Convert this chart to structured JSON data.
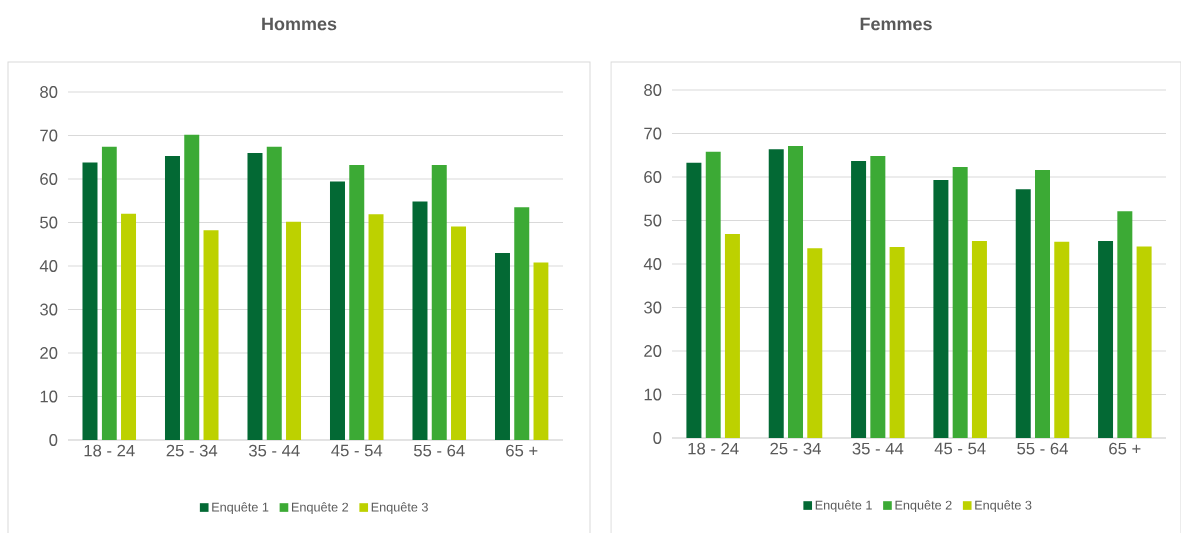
{
  "chart_data": [
    {
      "type": "bar",
      "title": "Hommes",
      "categories": [
        "18 - 24",
        "25 - 34",
        "35 - 44",
        "45 - 54",
        "55 - 64",
        "65 +"
      ],
      "series": [
        {
          "name": "Enquête 1",
          "color": "#036934",
          "values": [
            63.8,
            65.3,
            66.0,
            59.4,
            54.8,
            43.0
          ]
        },
        {
          "name": "Enquête 2",
          "color": "#3caa35",
          "values": [
            67.4,
            70.2,
            67.4,
            63.2,
            63.2,
            53.5
          ]
        },
        {
          "name": "Enquête 3",
          "color": "#bdd100",
          "values": [
            52.0,
            48.2,
            50.2,
            51.9,
            49.1,
            40.8
          ]
        }
      ],
      "ylim": [
        0,
        80
      ],
      "yticks": [
        0,
        10,
        20,
        30,
        40,
        50,
        60,
        70,
        80
      ],
      "grid": "y",
      "legend": "bottom"
    },
    {
      "type": "bar",
      "title": "Femmes",
      "categories": [
        "18 - 24",
        "25 - 34",
        "35 - 44",
        "45 - 54",
        "55 - 64",
        "65 +"
      ],
      "series": [
        {
          "name": "Enquête 1",
          "color": "#036934",
          "values": [
            63.3,
            66.4,
            63.7,
            59.3,
            57.2,
            45.3
          ]
        },
        {
          "name": "Enquête 2",
          "color": "#3caa35",
          "values": [
            65.8,
            67.1,
            64.8,
            62.3,
            61.6,
            52.1
          ]
        },
        {
          "name": "Enquête 3",
          "color": "#bdd100",
          "values": [
            46.9,
            43.6,
            43.9,
            45.3,
            45.1,
            44.0
          ]
        }
      ],
      "ylim": [
        0,
        80
      ],
      "yticks": [
        0,
        10,
        20,
        30,
        40,
        50,
        60,
        70,
        80
      ],
      "grid": "y",
      "legend": "bottom"
    }
  ]
}
